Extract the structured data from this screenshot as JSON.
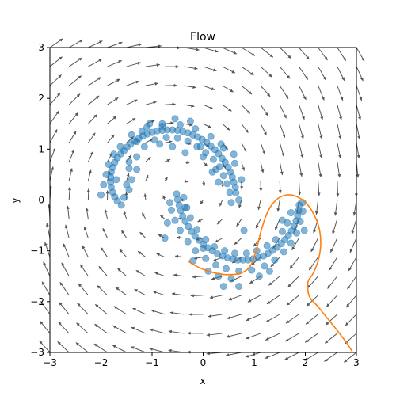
{
  "chart_data": {
    "type": "scatter",
    "title": "Flow",
    "xlabel": "x",
    "ylabel": "y",
    "xlim": [
      -3,
      3
    ],
    "ylim": [
      -3,
      3
    ],
    "xticks": [
      -3,
      -2,
      -1,
      0,
      1,
      2,
      3
    ],
    "yticks": [
      -3,
      -2,
      -1,
      0,
      1,
      2,
      3
    ],
    "grid": false,
    "colors": {
      "points": "#1f77b4",
      "trajectory": "#ff7f0e",
      "arrows": "#555555"
    },
    "quiver": {
      "nx": 17,
      "ny": 17,
      "field": "swirl",
      "centers": [
        [
          -0.4,
          0.2
        ],
        [
          2.4,
          1.3
        ]
      ]
    },
    "scatter_points": [
      [
        -1.61,
        0.91
      ],
      [
        -1.55,
        0.97
      ],
      [
        -1.49,
        1.04
      ],
      [
        -1.42,
        1.1
      ],
      [
        -1.34,
        1.16
      ],
      [
        -1.26,
        1.21
      ],
      [
        -1.18,
        1.26
      ],
      [
        -1.09,
        1.3
      ],
      [
        -1.0,
        1.33
      ],
      [
        -0.9,
        1.36
      ],
      [
        -0.8,
        1.37
      ],
      [
        -0.7,
        1.38
      ],
      [
        -0.6,
        1.38
      ],
      [
        -0.5,
        1.37
      ],
      [
        -0.4,
        1.35
      ],
      [
        -0.3,
        1.32
      ],
      [
        -0.2,
        1.28
      ],
      [
        -0.11,
        1.24
      ],
      [
        -0.02,
        1.19
      ],
      [
        0.07,
        1.13
      ],
      [
        0.15,
        1.06
      ],
      [
        0.23,
        0.99
      ],
      [
        0.3,
        0.91
      ],
      [
        0.37,
        0.82
      ],
      [
        0.43,
        0.74
      ],
      [
        0.49,
        0.64
      ],
      [
        0.53,
        0.55
      ],
      [
        0.57,
        0.45
      ],
      [
        0.6,
        0.35
      ],
      [
        0.63,
        0.25
      ],
      [
        0.64,
        0.14
      ],
      [
        -1.68,
        0.83
      ],
      [
        -1.73,
        0.74
      ],
      [
        -1.77,
        0.64
      ],
      [
        -1.8,
        0.55
      ],
      [
        -1.81,
        0.45
      ],
      [
        -1.81,
        0.35
      ],
      [
        -1.8,
        0.25
      ],
      [
        -1.77,
        0.15
      ],
      [
        -1.73,
        0.06
      ],
      [
        -1.68,
        -0.02
      ],
      [
        -1.55,
        0.05
      ],
      [
        -1.45,
        0.2
      ],
      [
        -1.4,
        0.4
      ],
      [
        -1.45,
        0.62
      ],
      [
        -1.3,
        0.85
      ],
      [
        -1.15,
        1.05
      ],
      [
        -0.95,
        1.18
      ],
      [
        -0.72,
        1.23
      ],
      [
        -0.5,
        1.22
      ],
      [
        -0.3,
        1.16
      ],
      [
        -0.12,
        1.05
      ],
      [
        0.05,
        0.93
      ],
      [
        0.2,
        0.8
      ],
      [
        0.32,
        0.65
      ],
      [
        0.4,
        0.48
      ],
      [
        0.47,
        0.32
      ],
      [
        0.52,
        0.15
      ],
      [
        -1.62,
        1.05
      ],
      [
        -1.4,
        1.28
      ],
      [
        -1.1,
        1.43
      ],
      [
        -0.8,
        1.5
      ],
      [
        -0.45,
        1.48
      ],
      [
        -0.15,
        1.4
      ],
      [
        0.15,
        1.25
      ],
      [
        0.4,
        1.02
      ],
      [
        0.62,
        0.72
      ],
      [
        0.75,
        0.4
      ],
      [
        -1.95,
        0.3
      ],
      [
        -2.0,
        0.1
      ],
      [
        -1.9,
        0.5
      ],
      [
        -1.3,
        0.6
      ],
      [
        -1.6,
        -0.1
      ],
      [
        -1.5,
        0.3
      ],
      [
        -0.85,
        1.1
      ],
      [
        -0.6,
        1.05
      ],
      [
        0.3,
        0.35
      ],
      [
        0.55,
        -0.05
      ],
      [
        -1.2,
        1.35
      ],
      [
        -1.85,
        0.7
      ],
      [
        -0.52,
        0.12
      ],
      [
        -0.5,
        0.01
      ],
      [
        -0.47,
        -0.1
      ],
      [
        -0.44,
        -0.21
      ],
      [
        -0.4,
        -0.32
      ],
      [
        -0.35,
        -0.42
      ],
      [
        -0.29,
        -0.52
      ],
      [
        -0.23,
        -0.62
      ],
      [
        -0.16,
        -0.71
      ],
      [
        -0.08,
        -0.79
      ],
      [
        0.0,
        -0.87
      ],
      [
        0.09,
        -0.94
      ],
      [
        0.18,
        -1.0
      ],
      [
        0.28,
        -1.06
      ],
      [
        0.38,
        -1.1
      ],
      [
        0.48,
        -1.14
      ],
      [
        0.58,
        -1.16
      ],
      [
        0.68,
        -1.18
      ],
      [
        0.78,
        -1.18
      ],
      [
        0.88,
        -1.18
      ],
      [
        0.98,
        -1.16
      ],
      [
        1.08,
        -1.13
      ],
      [
        1.18,
        -1.1
      ],
      [
        1.27,
        -1.05
      ],
      [
        1.36,
        -0.99
      ],
      [
        1.45,
        -0.93
      ],
      [
        1.53,
        -0.86
      ],
      [
        1.6,
        -0.78
      ],
      [
        1.67,
        -0.7
      ],
      [
        1.73,
        -0.61
      ],
      [
        1.78,
        -0.51
      ],
      [
        1.82,
        -0.41
      ],
      [
        1.85,
        -0.31
      ],
      [
        1.87,
        -0.21
      ],
      [
        1.88,
        -0.1
      ],
      [
        -0.65,
        -0.05
      ],
      [
        -0.62,
        -0.2
      ],
      [
        -0.55,
        -0.4
      ],
      [
        -0.45,
        -0.6
      ],
      [
        -0.3,
        -0.82
      ],
      [
        -0.15,
        -1.0
      ],
      [
        0.05,
        -1.15
      ],
      [
        0.25,
        -1.28
      ],
      [
        0.45,
        -1.35
      ],
      [
        0.7,
        -1.4
      ],
      [
        0.95,
        -1.38
      ],
      [
        1.2,
        -1.3
      ],
      [
        1.4,
        -1.18
      ],
      [
        1.58,
        -1.02
      ],
      [
        1.72,
        -0.85
      ],
      [
        1.83,
        -0.65
      ],
      [
        1.9,
        -0.42
      ],
      [
        1.95,
        -0.22
      ],
      [
        -0.38,
        0.05
      ],
      [
        -0.32,
        -0.15
      ],
      [
        -0.25,
        -0.35
      ],
      [
        -0.12,
        -0.58
      ],
      [
        0.05,
        -0.78
      ],
      [
        0.22,
        -0.92
      ],
      [
        0.42,
        -1.0
      ],
      [
        0.62,
        -1.05
      ],
      [
        0.85,
        -1.05
      ],
      [
        1.05,
        -1.0
      ],
      [
        1.25,
        -0.9
      ],
      [
        1.42,
        -0.78
      ],
      [
        1.55,
        -0.62
      ],
      [
        1.65,
        -0.45
      ],
      [
        1.72,
        -0.25
      ],
      [
        0.3,
        -1.5
      ],
      [
        0.55,
        -1.55
      ],
      [
        0.7,
        -1.7
      ],
      [
        0.4,
        -1.7
      ],
      [
        1.1,
        -1.5
      ],
      [
        -0.2,
        -1.2
      ],
      [
        -0.7,
        -0.45
      ],
      [
        -0.75,
        -0.75
      ],
      [
        0.0,
        -0.95
      ],
      [
        1.3,
        -1.4
      ],
      [
        1.98,
        -0.6
      ],
      [
        1.95,
        -0.05
      ],
      [
        -1.3,
        1.15
      ],
      [
        -0.25,
        1.55
      ],
      [
        -0.35,
        0.93
      ],
      [
        0.18,
        0.55
      ],
      [
        0.7,
        0.0
      ],
      [
        0.25,
        0.6
      ],
      [
        -1.75,
        0.9
      ],
      [
        0.0,
        0.85
      ],
      [
        -0.35,
        -0.15
      ],
      [
        0.8,
        -0.6
      ],
      [
        -0.8,
        1.45
      ],
      [
        -0.55,
        1.6
      ],
      [
        -0.05,
        1.05
      ],
      [
        0.35,
        1.1
      ],
      [
        0.6,
        0.9
      ],
      [
        -1.05,
        1.5
      ],
      [
        -1.45,
        0.75
      ],
      [
        -1.7,
        0.4
      ],
      [
        0.1,
        -1.4
      ],
      [
        1.55,
        -0.4
      ]
    ],
    "trajectory": [
      [
        -0.3,
        -1.2
      ],
      [
        -0.1,
        -1.32
      ],
      [
        0.1,
        -1.4
      ],
      [
        0.3,
        -1.45
      ],
      [
        0.5,
        -1.47
      ],
      [
        0.7,
        -1.45
      ],
      [
        0.85,
        -1.38
      ],
      [
        0.95,
        -1.25
      ],
      [
        1.05,
        -0.95
      ],
      [
        1.15,
        -0.55
      ],
      [
        1.28,
        -0.2
      ],
      [
        1.45,
        0.02
      ],
      [
        1.65,
        0.1
      ],
      [
        1.85,
        0.06
      ],
      [
        2.05,
        -0.1
      ],
      [
        2.2,
        -0.35
      ],
      [
        2.28,
        -0.6
      ],
      [
        2.3,
        -0.9
      ],
      [
        2.25,
        -1.2
      ],
      [
        2.15,
        -1.45
      ],
      [
        2.05,
        -1.62
      ],
      [
        2.08,
        -1.9
      ],
      [
        2.25,
        -2.1
      ],
      [
        2.45,
        -2.35
      ],
      [
        2.65,
        -2.6
      ],
      [
        2.8,
        -2.8
      ],
      [
        2.92,
        -2.98
      ]
    ]
  }
}
